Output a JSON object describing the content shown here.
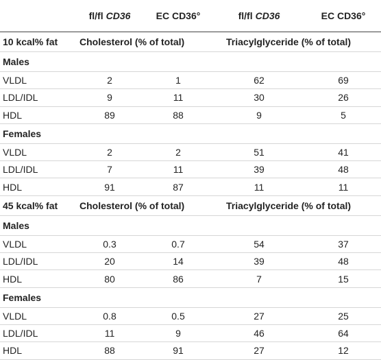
{
  "header": {
    "columns": [
      {
        "text": "fl/fl",
        "italic": "CD36"
      },
      {
        "text": "EC CD36°"
      },
      {
        "text": "fl/fl",
        "italic": "CD36"
      },
      {
        "text": "EC CD36°"
      }
    ]
  },
  "sections": [
    {
      "title": "10 kcal% fat",
      "group_headers": [
        "Cholesterol (% of total)",
        "Triacylglyceride (% of total)"
      ],
      "groups": [
        {
          "name": "Males",
          "rows": [
            {
              "label": "VLDL",
              "values": [
                2,
                1,
                62,
                69
              ]
            },
            {
              "label": "LDL/IDL",
              "values": [
                9,
                11,
                30,
                26
              ]
            },
            {
              "label": "HDL",
              "values": [
                89,
                88,
                9,
                5
              ]
            }
          ]
        },
        {
          "name": "Females",
          "rows": [
            {
              "label": "VLDL",
              "values": [
                2,
                2,
                51,
                41
              ]
            },
            {
              "label": "LDL/IDL",
              "values": [
                7,
                11,
                39,
                48
              ]
            },
            {
              "label": "HDL",
              "values": [
                91,
                87,
                11,
                11
              ]
            }
          ]
        }
      ]
    },
    {
      "title": "45 kcal% fat",
      "group_headers": [
        "Cholesterol (% of total)",
        "Triacylglyceride (% of total)"
      ],
      "groups": [
        {
          "name": "Males",
          "rows": [
            {
              "label": "VLDL",
              "values": [
                0.3,
                0.7,
                54,
                37
              ]
            },
            {
              "label": "LDL/IDL",
              "values": [
                20,
                14,
                39,
                48
              ]
            },
            {
              "label": "HDL",
              "values": [
                80,
                86,
                7,
                15
              ]
            }
          ]
        },
        {
          "name": "Females",
          "rows": [
            {
              "label": "VLDL",
              "values": [
                0.8,
                0.5,
                27,
                25
              ]
            },
            {
              "label": "LDL/IDL",
              "values": [
                11,
                9,
                46,
                64
              ]
            },
            {
              "label": "HDL",
              "values": [
                88,
                91,
                27,
                12
              ]
            }
          ]
        }
      ]
    }
  ]
}
